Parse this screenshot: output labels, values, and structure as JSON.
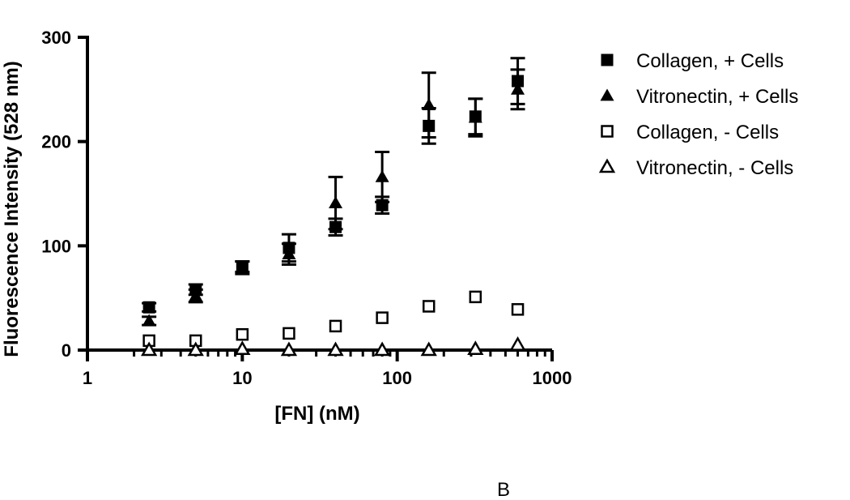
{
  "chart_data": {
    "type": "scatter",
    "title": "",
    "xlabel": "[FN] (nM)",
    "ylabel": "Fluorescence Intensity (528 nm)",
    "xscale": "log",
    "xlim": [
      1,
      1000
    ],
    "ylim": [
      0,
      300
    ],
    "x_ticks": [
      "1",
      "10",
      "100",
      "1000"
    ],
    "y_ticks": [
      "0",
      "100",
      "200",
      "300"
    ],
    "grid": false,
    "legend_position": "right",
    "panel_label": "B",
    "series": [
      {
        "name": "Collagen, + Cells",
        "marker": "square-filled",
        "x": [
          2.5,
          5,
          10,
          20,
          40,
          80,
          160,
          320,
          600
        ],
        "y": [
          41,
          58,
          80,
          98,
          118,
          139,
          215,
          224,
          258
        ],
        "yerr": [
          4,
          5,
          5,
          13,
          8,
          8,
          17,
          17,
          22
        ]
      },
      {
        "name": "Vitronectin, + Cells",
        "marker": "triangle-filled",
        "x": [
          2.5,
          5,
          10,
          20,
          40,
          80,
          160,
          320,
          600
        ],
        "y": [
          28,
          52,
          79,
          92,
          141,
          166,
          235,
          223,
          250
        ],
        "yerr": [
          4,
          6,
          6,
          10,
          25,
          24,
          31,
          18,
          19
        ]
      },
      {
        "name": "Collagen, - Cells",
        "marker": "square-open",
        "x": [
          2.5,
          5,
          10,
          20,
          40,
          80,
          160,
          320,
          600
        ],
        "y": [
          9,
          9,
          15,
          16,
          23,
          31,
          42,
          51,
          39
        ],
        "yerr": [
          0,
          0,
          0,
          0,
          0,
          0,
          0,
          0,
          0
        ]
      },
      {
        "name": "Vitronectin, - Cells",
        "marker": "triangle-open",
        "x": [
          2.5,
          5,
          10,
          20,
          40,
          80,
          160,
          320,
          600
        ],
        "y": [
          0,
          0,
          1,
          0,
          0,
          0,
          0,
          1,
          5
        ],
        "yerr": [
          0,
          0,
          0,
          0,
          0,
          0,
          0,
          0,
          0
        ]
      }
    ]
  }
}
